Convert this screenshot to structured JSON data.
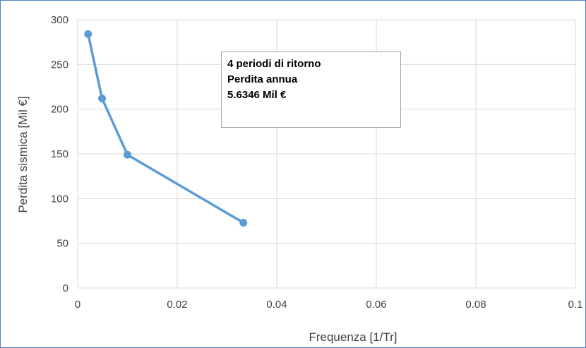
{
  "chart_data": {
    "type": "line",
    "title": "",
    "xlabel": "Frequenza [1/Tr]",
    "ylabel": "Perdita sismica [Mil €]",
    "xlim": [
      0,
      0.1
    ],
    "ylim": [
      0,
      300
    ],
    "x_ticks": [
      "0",
      "0.02",
      "0.04",
      "0.06",
      "0.08",
      "0.1"
    ],
    "y_ticks": [
      "0",
      "50",
      "100",
      "150",
      "200",
      "250",
      "300"
    ],
    "grid": true,
    "series": [
      {
        "color": "#5b9bd5",
        "x": [
          0.0021,
          0.0049,
          0.01,
          0.0333
        ],
        "y": [
          284,
          212,
          149,
          73
        ]
      }
    ],
    "annotation": {
      "line1": "4 periodi di ritorno",
      "line2": "Perdita annua",
      "line3": "5.6346 Mil €"
    }
  }
}
